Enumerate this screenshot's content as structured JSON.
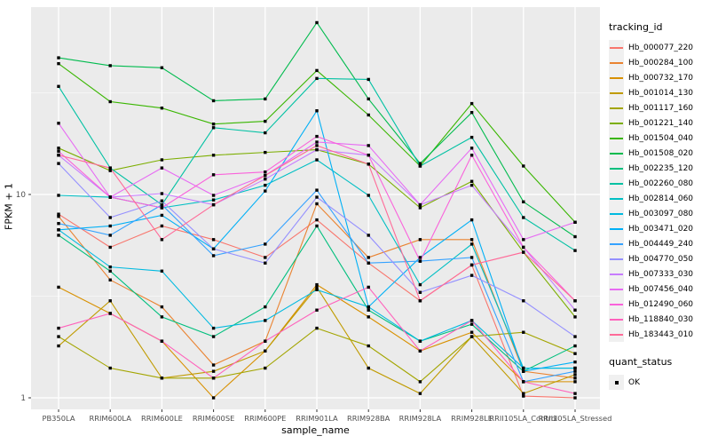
{
  "figure": {
    "background": "#FFFFFF",
    "panel_background": "#EBEBEB",
    "gridline_color": "#FFFFFF",
    "tick_color": "#333333",
    "tick_label_color": "#4D4D4D",
    "axis_title_color": "#000000",
    "point_color": "#000000"
  },
  "legend": {
    "tracking_title": "tracking_id",
    "quant_title": "quant_status",
    "quant_value": "OK",
    "key_background": "#F0F0F0"
  },
  "chart_data": {
    "type": "line",
    "title": "",
    "xlabel": "sample_name",
    "ylabel": "FPKM + 1",
    "y_scale": "log10",
    "y_ticks": [
      1,
      10
    ],
    "y_minor_gridlines": [
      3.1623,
      31.623
    ],
    "ylim": [
      1,
      80
    ],
    "grid": true,
    "legend_position": "right",
    "point_shape": "filled-square",
    "x_categories": [
      "PB350LA",
      "RRIM600LA",
      "RRIM600LE",
      "RRIM600SE",
      "RRIM600PE",
      "RRIM901LA",
      "RRIM928BA",
      "RRIM928LA",
      "RRIM928LE",
      "RRII105LA_Control",
      "RRII105LA_Stressed"
    ],
    "series": [
      {
        "name": "Hb_000077_220",
        "color": "#F8766D",
        "values": [
          8.0,
          5.5,
          7.0,
          6.0,
          4.9,
          7.5,
          4.6,
          3.0,
          4.5,
          1.02,
          1.0
        ]
      },
      {
        "name": "Hb_000284_100",
        "color": "#EA8331",
        "values": [
          7.8,
          3.8,
          2.8,
          1.45,
          1.9,
          9.0,
          4.9,
          6.0,
          6.0,
          1.35,
          1.25
        ]
      },
      {
        "name": "Hb_000732_170",
        "color": "#D89000",
        "values": [
          3.5,
          2.6,
          1.9,
          1.0,
          1.7,
          3.6,
          2.5,
          1.7,
          2.1,
          1.2,
          1.2
        ]
      },
      {
        "name": "Hb_001014_130",
        "color": "#C09B00",
        "values": [
          1.8,
          3.0,
          1.25,
          1.35,
          1.7,
          3.5,
          1.4,
          1.05,
          2.0,
          1.05,
          1.3
        ]
      },
      {
        "name": "Hb_001117_160",
        "color": "#A3A500",
        "values": [
          2.0,
          1.4,
          1.25,
          1.25,
          1.4,
          2.2,
          1.8,
          1.2,
          2.0,
          2.1,
          1.65
        ]
      },
      {
        "name": "Hb_001221_140",
        "color": "#7CAE00",
        "values": [
          16.9,
          13.1,
          14.8,
          15.6,
          16.1,
          16.6,
          14.1,
          8.6,
          11.6,
          5.2,
          2.5
        ]
      },
      {
        "name": "Hb_001504_040",
        "color": "#39B600",
        "values": [
          44,
          28.6,
          26.6,
          22.2,
          22.9,
          40.7,
          24.6,
          13.8,
          28.0,
          13.8,
          7.3
        ]
      },
      {
        "name": "Hb_001508_020",
        "color": "#00BB4E",
        "values": [
          47,
          43,
          42,
          28.9,
          29.5,
          70,
          29.5,
          14.2,
          25.3,
          9.2,
          6.2
        ]
      },
      {
        "name": "Hb_002235_120",
        "color": "#00BF7D",
        "values": [
          6.3,
          4.2,
          2.5,
          2.0,
          2.8,
          7.0,
          2.7,
          1.9,
          2.3,
          1.35,
          1.8
        ]
      },
      {
        "name": "Hb_002260_080",
        "color": "#00C1A3",
        "values": [
          34,
          13.5,
          8.9,
          21.3,
          20.1,
          37.2,
          36.8,
          13.8,
          19.1,
          7.7,
          5.3
        ]
      },
      {
        "name": "Hb_002814_060",
        "color": "#00BFC4",
        "values": [
          9.9,
          9.7,
          8.6,
          9.4,
          11.1,
          14.8,
          9.9,
          3.6,
          5.7,
          1.4,
          1.4
        ]
      },
      {
        "name": "Hb_003097_080",
        "color": "#00BAE0",
        "values": [
          6.7,
          4.4,
          4.2,
          2.2,
          2.4,
          3.4,
          2.8,
          1.9,
          2.4,
          1.4,
          1.4
        ]
      },
      {
        "name": "Hb_003471_020",
        "color": "#00B0F6",
        "values": [
          6.7,
          7.0,
          7.9,
          5.4,
          10.4,
          25.8,
          2.8,
          4.9,
          7.5,
          1.35,
          1.5
        ]
      },
      {
        "name": "Hb_004449_240",
        "color": "#35A2FF",
        "values": [
          7.2,
          6.3,
          8.9,
          5.0,
          5.7,
          10.5,
          4.6,
          4.7,
          4.9,
          1.2,
          1.35
        ]
      },
      {
        "name": "Hb_004770_050",
        "color": "#9590FF",
        "values": [
          14.2,
          7.7,
          9.3,
          5.4,
          4.6,
          9.7,
          6.3,
          3.3,
          4.0,
          3.0,
          2.0
        ]
      },
      {
        "name": "Hb_007333_030",
        "color": "#C77CFF",
        "values": [
          15.6,
          9.7,
          10.1,
          8.9,
          11.9,
          16.6,
          15.6,
          8.9,
          11.1,
          5.5,
          2.7
        ]
      },
      {
        "name": "Hb_007456_040",
        "color": "#E76BF3",
        "values": [
          22.4,
          9.7,
          13.5,
          9.9,
          12.4,
          18.1,
          17.4,
          8.9,
          16.9,
          6.0,
          7.3
        ]
      },
      {
        "name": "Hb_012490_060",
        "color": "#FA62DB",
        "values": [
          16.3,
          9.7,
          8.6,
          12.5,
          12.9,
          19.3,
          15.6,
          4.7,
          15.6,
          5.5,
          3.0
        ]
      },
      {
        "name": "Hb_118840_030",
        "color": "#FF62BC",
        "values": [
          2.2,
          2.6,
          1.9,
          1.25,
          1.9,
          2.7,
          3.5,
          1.7,
          2.4,
          1.2,
          1.05
        ]
      },
      {
        "name": "Hb_183443_010",
        "color": "#FF6A98",
        "values": [
          15.6,
          13.5,
          6.0,
          8.9,
          12.4,
          17.4,
          14.1,
          3.0,
          4.5,
          5.2,
          3.0
        ]
      }
    ]
  }
}
